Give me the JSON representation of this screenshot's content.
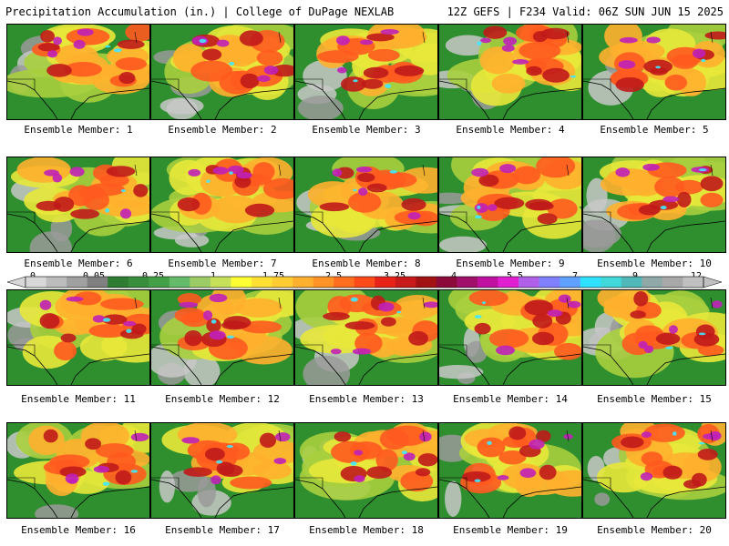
{
  "header": {
    "left": "Precipitation Accumulation (in.) | College of DuPage NEXLAB",
    "right": "12Z GEFS | F234 Valid: 06Z SUN JUN 15 2025"
  },
  "colorbar": {
    "labels": [
      "0",
      "0.05",
      "0.25",
      "1",
      "1.75",
      "2.5",
      "3.25",
      "4",
      "5.5",
      "7",
      "9",
      "12"
    ],
    "colors": [
      "#d8d8d8",
      "#bcbcbc",
      "#a0a0a0",
      "#808080",
      "#2e7d32",
      "#388e3c",
      "#43a047",
      "#66bb6a",
      "#9ccc65",
      "#c6e05a",
      "#ffff33",
      "#ffe033",
      "#ffcc33",
      "#ffb02e",
      "#ff9326",
      "#ff6e1f",
      "#ff4a1a",
      "#e8231a",
      "#c81a1a",
      "#a31212",
      "#8b0a3a",
      "#a0106a",
      "#c010a0",
      "#e020d0",
      "#b060e8",
      "#8080ff",
      "#60a0ff",
      "#30e0ff",
      "#40d8d8",
      "#50b8b8",
      "#90a8a8",
      "#a8a8a8",
      "#c0c0c0"
    ]
  },
  "members": [
    {
      "label": "Ensemble Member: 1"
    },
    {
      "label": "Ensemble Member: 2"
    },
    {
      "label": "Ensemble Member: 3"
    },
    {
      "label": "Ensemble Member: 4"
    },
    {
      "label": "Ensemble Member: 5"
    },
    {
      "label": "Ensemble Member: 6"
    },
    {
      "label": "Ensemble Member: 7"
    },
    {
      "label": "Ensemble Member: 8"
    },
    {
      "label": "Ensemble Member: 9"
    },
    {
      "label": "Ensemble Member: 10"
    },
    {
      "label": "Ensemble Member: 11"
    },
    {
      "label": "Ensemble Member: 12"
    },
    {
      "label": "Ensemble Member: 13"
    },
    {
      "label": "Ensemble Member: 14"
    },
    {
      "label": "Ensemble Member: 15"
    },
    {
      "label": "Ensemble Member: 16"
    },
    {
      "label": "Ensemble Member: 17"
    },
    {
      "label": "Ensemble Member: 18"
    },
    {
      "label": "Ensemble Member: 19"
    },
    {
      "label": "Ensemble Member: 20"
    }
  ]
}
